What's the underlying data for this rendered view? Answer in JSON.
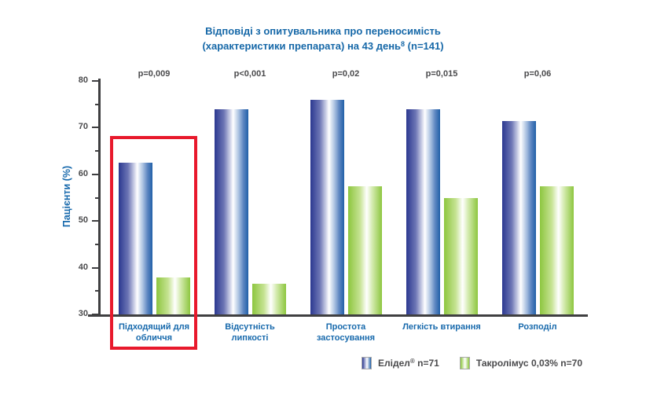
{
  "title": {
    "line1": "Відповіді з опитувальника про переносимість",
    "line2_before_sup": "(характеристики препарата) на 43 день",
    "line2_sup": "8",
    "line2_after_sup": " (n=141)"
  },
  "chart_data": {
    "type": "bar",
    "title": "Відповіді з опитувальника про переносимість (характеристики препарата) на 43 день8 (n=141)",
    "ylabel": "Пацієнти (%)",
    "ylim": [
      30,
      80
    ],
    "yticks": [
      30,
      40,
      50,
      60,
      70,
      80
    ],
    "minor_tick_step": 5,
    "grid": false,
    "legend_position": "bottom-right",
    "categories": [
      "Підходящий для обличчя",
      "Відсутність липкості",
      "Простота застосування",
      "Легкість втирання",
      "Розподіл"
    ],
    "p_values": [
      "p=0,009",
      "p<0,001",
      "p=0,02",
      "p=0,015",
      "p=0,06"
    ],
    "series": [
      {
        "name": "Елідел® n=71",
        "swatch": "blue",
        "values": [
          62.5,
          74,
          76,
          74,
          71.5
        ]
      },
      {
        "name": "Такролімус 0,03% n=70",
        "swatch": "green",
        "values": [
          38,
          36.5,
          57.5,
          55,
          57.5
        ]
      }
    ],
    "highlighted_category_index": 0,
    "annotation": "red rectangle highlights group: Підходящий для обличчя"
  },
  "legend": {
    "items": [
      {
        "text_before_sup": "Елідел",
        "sup": "®",
        "text_after_sup": " n=71"
      },
      {
        "text_before_sup": "Такролімус 0,03% n=70",
        "sup": "",
        "text_after_sup": ""
      }
    ]
  },
  "colors": {
    "title_blue": "#1668A8",
    "brand_blue": "#1769AC",
    "eli_edge_left": "#2B3890",
    "eli_edge_right": "#2160A8",
    "tacro_green": "#8DC63F",
    "highlight_red": "#E8192C",
    "text_gray": "#4A4A4C",
    "axis_gray": "#3F3F41"
  }
}
